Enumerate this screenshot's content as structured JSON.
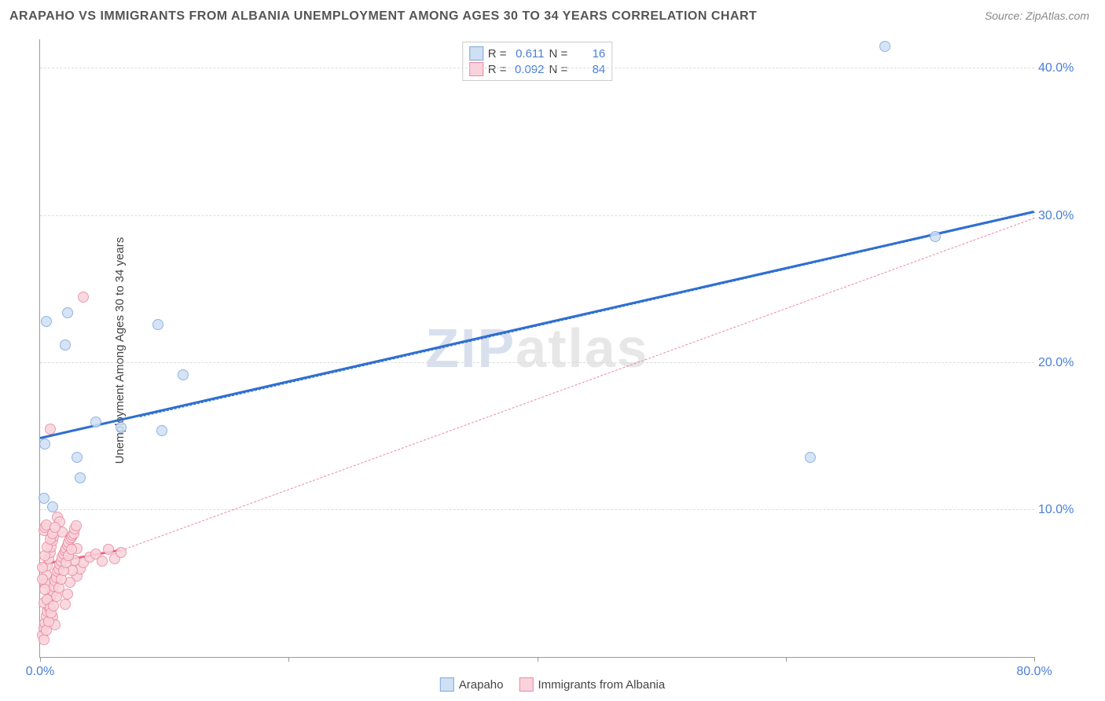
{
  "title": "ARAPAHO VS IMMIGRANTS FROM ALBANIA UNEMPLOYMENT AMONG AGES 30 TO 34 YEARS CORRELATION CHART",
  "source": "Source: ZipAtlas.com",
  "ylabel": "Unemployment Among Ages 30 to 34 years",
  "watermark_a": "ZIP",
  "watermark_b": "atlas",
  "chart": {
    "type": "scatter",
    "xlim": [
      0,
      80
    ],
    "ylim": [
      0,
      42
    ],
    "xticks": [
      0,
      20,
      40,
      60,
      80
    ],
    "xtick_labels": [
      "0.0%",
      "",
      "",
      "",
      "80.0%"
    ],
    "yticks": [
      10,
      20,
      30,
      40
    ],
    "ytick_labels": [
      "10.0%",
      "20.0%",
      "30.0%",
      "40.0%"
    ],
    "background_color": "#ffffff",
    "grid_color": "#dddddd",
    "axis_color": "#999999",
    "tick_label_color": "#4a7fd8",
    "title_color": "#555555",
    "title_fontsize": 16,
    "label_fontsize": 15,
    "tick_fontsize": 16,
    "marker_radius": 7,
    "series": [
      {
        "name": "Arapaho",
        "fill": "#cfe0f5",
        "stroke": "#7ba7dd",
        "r_value": "0.611",
        "n_value": "16",
        "trend": {
          "x1": 0,
          "y1": 14.8,
          "x2": 80,
          "y2": 30.2,
          "color": "#2f6fd0",
          "width": 3,
          "dashed": false
        },
        "trend_ext": {
          "x1": 8,
          "y1": 16.3,
          "x2": 80,
          "y2": 30.2,
          "color": "#2f6fd0",
          "width": 1,
          "dashed": true
        },
        "points": [
          {
            "x": 0.5,
            "y": 22.8
          },
          {
            "x": 2.2,
            "y": 23.4
          },
          {
            "x": 1.0,
            "y": 10.2
          },
          {
            "x": 2.0,
            "y": 21.2
          },
          {
            "x": 3.2,
            "y": 12.2
          },
          {
            "x": 3.0,
            "y": 13.6
          },
          {
            "x": 6.5,
            "y": 15.6
          },
          {
            "x": 9.8,
            "y": 15.4
          },
          {
            "x": 9.5,
            "y": 22.6
          },
          {
            "x": 11.5,
            "y": 19.2
          },
          {
            "x": 62.0,
            "y": 13.6
          },
          {
            "x": 68.0,
            "y": 41.5
          },
          {
            "x": 72.0,
            "y": 28.6
          },
          {
            "x": 0.3,
            "y": 10.8
          },
          {
            "x": 0.4,
            "y": 14.5
          },
          {
            "x": 4.5,
            "y": 16.0
          }
        ]
      },
      {
        "name": "Immigrants from Albania",
        "fill": "#f9d3db",
        "stroke": "#e98aa0",
        "r_value": "0.092",
        "n_value": "84",
        "trend": {
          "x1": 0,
          "y1": 6.2,
          "x2": 6.5,
          "y2": 7.2,
          "color": "#e85f85",
          "width": 3,
          "dashed": false
        },
        "trend_ext": {
          "x1": 6.5,
          "y1": 7.2,
          "x2": 80,
          "y2": 29.8,
          "color": "#e98aa0",
          "width": 1,
          "dashed": true
        },
        "points": [
          {
            "x": 0.2,
            "y": 1.5
          },
          {
            "x": 0.3,
            "y": 2.0
          },
          {
            "x": 0.4,
            "y": 2.3
          },
          {
            "x": 0.5,
            "y": 2.8
          },
          {
            "x": 0.6,
            "y": 3.1
          },
          {
            "x": 0.7,
            "y": 3.4
          },
          {
            "x": 0.3,
            "y": 3.7
          },
          {
            "x": 0.8,
            "y": 4.0
          },
          {
            "x": 0.9,
            "y": 4.2
          },
          {
            "x": 1.0,
            "y": 4.5
          },
          {
            "x": 1.1,
            "y": 4.8
          },
          {
            "x": 0.4,
            "y": 5.0
          },
          {
            "x": 1.2,
            "y": 5.2
          },
          {
            "x": 1.3,
            "y": 5.4
          },
          {
            "x": 0.5,
            "y": 5.6
          },
          {
            "x": 1.4,
            "y": 5.8
          },
          {
            "x": 1.5,
            "y": 6.0
          },
          {
            "x": 0.6,
            "y": 6.2
          },
          {
            "x": 1.6,
            "y": 6.3
          },
          {
            "x": 1.7,
            "y": 6.5
          },
          {
            "x": 0.7,
            "y": 6.7
          },
          {
            "x": 1.8,
            "y": 6.8
          },
          {
            "x": 1.9,
            "y": 7.0
          },
          {
            "x": 0.8,
            "y": 7.1
          },
          {
            "x": 2.0,
            "y": 7.2
          },
          {
            "x": 2.1,
            "y": 7.4
          },
          {
            "x": 0.9,
            "y": 7.5
          },
          {
            "x": 2.2,
            "y": 7.6
          },
          {
            "x": 2.3,
            "y": 7.8
          },
          {
            "x": 1.0,
            "y": 7.9
          },
          {
            "x": 2.4,
            "y": 8.0
          },
          {
            "x": 2.5,
            "y": 8.1
          },
          {
            "x": 1.1,
            "y": 8.2
          },
          {
            "x": 2.6,
            "y": 8.3
          },
          {
            "x": 2.7,
            "y": 8.4
          },
          {
            "x": 0.3,
            "y": 8.6
          },
          {
            "x": 2.8,
            "y": 8.7
          },
          {
            "x": 0.4,
            "y": 8.8
          },
          {
            "x": 2.9,
            "y": 8.9
          },
          {
            "x": 0.5,
            "y": 9.0
          },
          {
            "x": 3.0,
            "y": 5.5
          },
          {
            "x": 0.2,
            "y": 5.3
          },
          {
            "x": 3.2,
            "y": 6.0
          },
          {
            "x": 0.4,
            "y": 4.6
          },
          {
            "x": 3.5,
            "y": 6.4
          },
          {
            "x": 0.6,
            "y": 3.9
          },
          {
            "x": 4.0,
            "y": 6.8
          },
          {
            "x": 0.8,
            "y": 3.3
          },
          {
            "x": 4.5,
            "y": 7.0
          },
          {
            "x": 1.0,
            "y": 2.7
          },
          {
            "x": 5.0,
            "y": 6.5
          },
          {
            "x": 1.2,
            "y": 2.2
          },
          {
            "x": 5.5,
            "y": 7.3
          },
          {
            "x": 1.4,
            "y": 9.5
          },
          {
            "x": 6.0,
            "y": 6.7
          },
          {
            "x": 1.6,
            "y": 9.2
          },
          {
            "x": 6.5,
            "y": 7.1
          },
          {
            "x": 1.8,
            "y": 8.5
          },
          {
            "x": 0.3,
            "y": 1.2
          },
          {
            "x": 2.0,
            "y": 3.6
          },
          {
            "x": 0.5,
            "y": 1.8
          },
          {
            "x": 2.2,
            "y": 4.3
          },
          {
            "x": 0.7,
            "y": 2.4
          },
          {
            "x": 2.4,
            "y": 5.1
          },
          {
            "x": 0.9,
            "y": 3.0
          },
          {
            "x": 2.6,
            "y": 5.9
          },
          {
            "x": 1.1,
            "y": 3.5
          },
          {
            "x": 2.8,
            "y": 6.6
          },
          {
            "x": 1.3,
            "y": 4.1
          },
          {
            "x": 3.0,
            "y": 7.4
          },
          {
            "x": 1.5,
            "y": 4.7
          },
          {
            "x": 1.7,
            "y": 5.3
          },
          {
            "x": 1.9,
            "y": 5.9
          },
          {
            "x": 2.1,
            "y": 6.4
          },
          {
            "x": 2.3,
            "y": 6.9
          },
          {
            "x": 2.5,
            "y": 7.3
          },
          {
            "x": 3.5,
            "y": 24.5
          },
          {
            "x": 0.8,
            "y": 15.5
          },
          {
            "x": 0.2,
            "y": 6.1
          },
          {
            "x": 0.4,
            "y": 6.9
          },
          {
            "x": 0.6,
            "y": 7.5
          },
          {
            "x": 0.8,
            "y": 8.0
          },
          {
            "x": 1.0,
            "y": 8.4
          },
          {
            "x": 1.2,
            "y": 8.8
          }
        ]
      }
    ]
  },
  "legend_top": {
    "r_label": "R =",
    "n_label": "N ="
  },
  "legend_bottom": [
    {
      "swatch_fill": "#cfe0f5",
      "swatch_stroke": "#7ba7dd",
      "label": "Arapaho"
    },
    {
      "swatch_fill": "#f9d3db",
      "swatch_stroke": "#e98aa0",
      "label": "Immigrants from Albania"
    }
  ]
}
